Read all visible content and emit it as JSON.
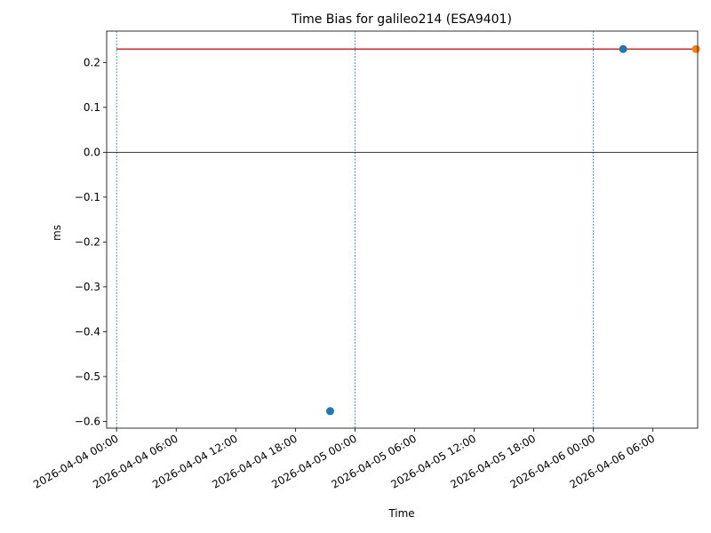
{
  "chart_data": {
    "type": "scatter",
    "title": "Time Bias for galileo214 (ESA9401)",
    "xlabel": "Time",
    "ylabel": "ms",
    "xlim": [
      "2026-04-03 23:00",
      "2026-04-06 10:30"
    ],
    "ylim": [
      -0.615,
      0.27
    ],
    "x_ticks": [
      "2026-04-04 00:00",
      "2026-04-04 06:00",
      "2026-04-04 12:00",
      "2026-04-04 18:00",
      "2026-04-05 00:00",
      "2026-04-05 06:00",
      "2026-04-05 12:00",
      "2026-04-05 18:00",
      "2026-04-06 00:00",
      "2026-04-06 06:00"
    ],
    "y_ticks": [
      "0.2",
      "0.1",
      "0.0",
      "-0.1",
      "-0.2",
      "-0.3",
      "-0.4",
      "-0.5",
      "-0.6"
    ],
    "y_tick_values": [
      0.2,
      0.1,
      0.0,
      -0.1,
      -0.2,
      -0.3,
      -0.4,
      -0.5,
      -0.6
    ],
    "zero_line": 0.0,
    "vlines": [
      "2026-04-04 00:00",
      "2026-04-05 00:00",
      "2026-04-06 00:00"
    ],
    "reference_line": {
      "y": 0.23,
      "x_start": "2026-04-04 00:00",
      "x_end": "2026-04-06 10:30",
      "color": "#d62728"
    },
    "series": [
      {
        "color": "#1f77b4",
        "points": [
          {
            "x": "2026-04-04 21:30",
            "y": -0.577
          },
          {
            "x": "2026-04-06 03:00",
            "y": 0.23
          }
        ]
      },
      {
        "color": "#ff7f0e",
        "points": [
          {
            "x": "2026-04-06 10:20",
            "y": 0.23
          }
        ]
      }
    ]
  }
}
